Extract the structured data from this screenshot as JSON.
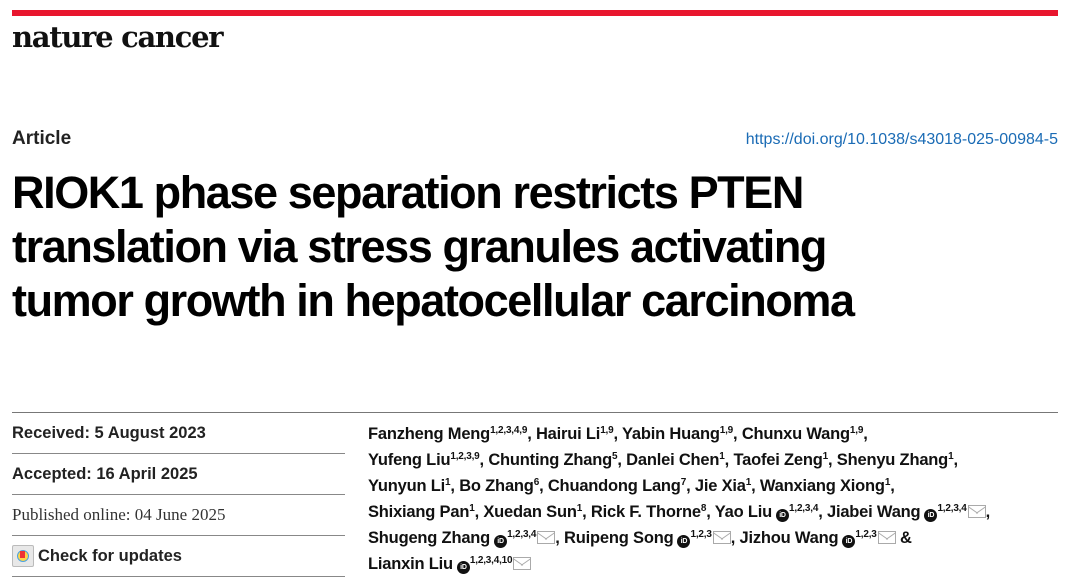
{
  "journal": "nature cancer",
  "colors": {
    "brand_red": "#e8162e",
    "doi_link": "#1a6bb5"
  },
  "article_type": "Article",
  "doi": "https://doi.org/10.1038/s43018-025-00984-5",
  "title_lines": [
    "RIOK1 phase separation restricts PTEN",
    "translation via stress granules activating",
    "tumor growth in hepatocellular carcinoma"
  ],
  "dates": {
    "received": "Received: 5 August 2023",
    "accepted": "Accepted: 16 April 2025",
    "published": "Published online: 04 June 2025"
  },
  "check_updates": "Check for updates",
  "author_lines": [
    [
      {
        "name": "Fanzheng Meng",
        "aff": "1,2,3,4,9",
        "sep": ", "
      },
      {
        "name": "Hairui Li",
        "aff": "1,9",
        "sep": ", "
      },
      {
        "name": "Yabin Huang",
        "aff": "1,9",
        "sep": ", "
      },
      {
        "name": "Chunxu Wang",
        "aff": "1,9",
        "sep": ","
      }
    ],
    [
      {
        "name": "Yufeng Liu",
        "aff": "1,2,3,9",
        "sep": ", "
      },
      {
        "name": "Chunting Zhang",
        "aff": "5",
        "sep": ", "
      },
      {
        "name": "Danlei Chen",
        "aff": "1",
        "sep": ", "
      },
      {
        "name": "Taofei Zeng",
        "aff": "1",
        "sep": ", "
      },
      {
        "name": "Shenyu Zhang",
        "aff": "1",
        "sep": ","
      }
    ],
    [
      {
        "name": "Yunyun Li",
        "aff": "1",
        "sep": ", "
      },
      {
        "name": "Bo Zhang",
        "aff": "6",
        "sep": ", "
      },
      {
        "name": "Chuandong Lang",
        "aff": "7",
        "sep": ", "
      },
      {
        "name": "Jie Xia",
        "aff": "1",
        "sep": ", "
      },
      {
        "name": "Wanxiang Xiong",
        "aff": "1",
        "sep": ","
      }
    ],
    [
      {
        "name": "Shixiang Pan",
        "aff": "1",
        "sep": ", "
      },
      {
        "name": "Xuedan Sun",
        "aff": "1",
        "sep": ", "
      },
      {
        "name": "Rick F. Thorne",
        "aff": "8",
        "sep": ", "
      },
      {
        "name": "Yao Liu",
        "aff": "1,2,3,4",
        "orcid": true,
        "sep": ", "
      },
      {
        "name": "Jiabei Wang",
        "aff": "1,2,3,4",
        "orcid": true,
        "mail": true,
        "sep": ","
      }
    ],
    [
      {
        "name": "Shugeng Zhang",
        "aff": "1,2,3,4",
        "orcid": true,
        "mail": true,
        "sep": ", "
      },
      {
        "name": "Ruipeng Song",
        "aff": "1,2,3",
        "orcid": true,
        "mail": true,
        "sep": ", "
      },
      {
        "name": "Jizhou Wang",
        "aff": "1,2,3",
        "orcid": true,
        "mail": true,
        "sep": " &"
      }
    ],
    [
      {
        "name": "Lianxin Liu",
        "aff": "1,2,3,4,10",
        "orcid": true,
        "mail": true,
        "sep": ""
      }
    ]
  ],
  "orcid_label": "iD"
}
